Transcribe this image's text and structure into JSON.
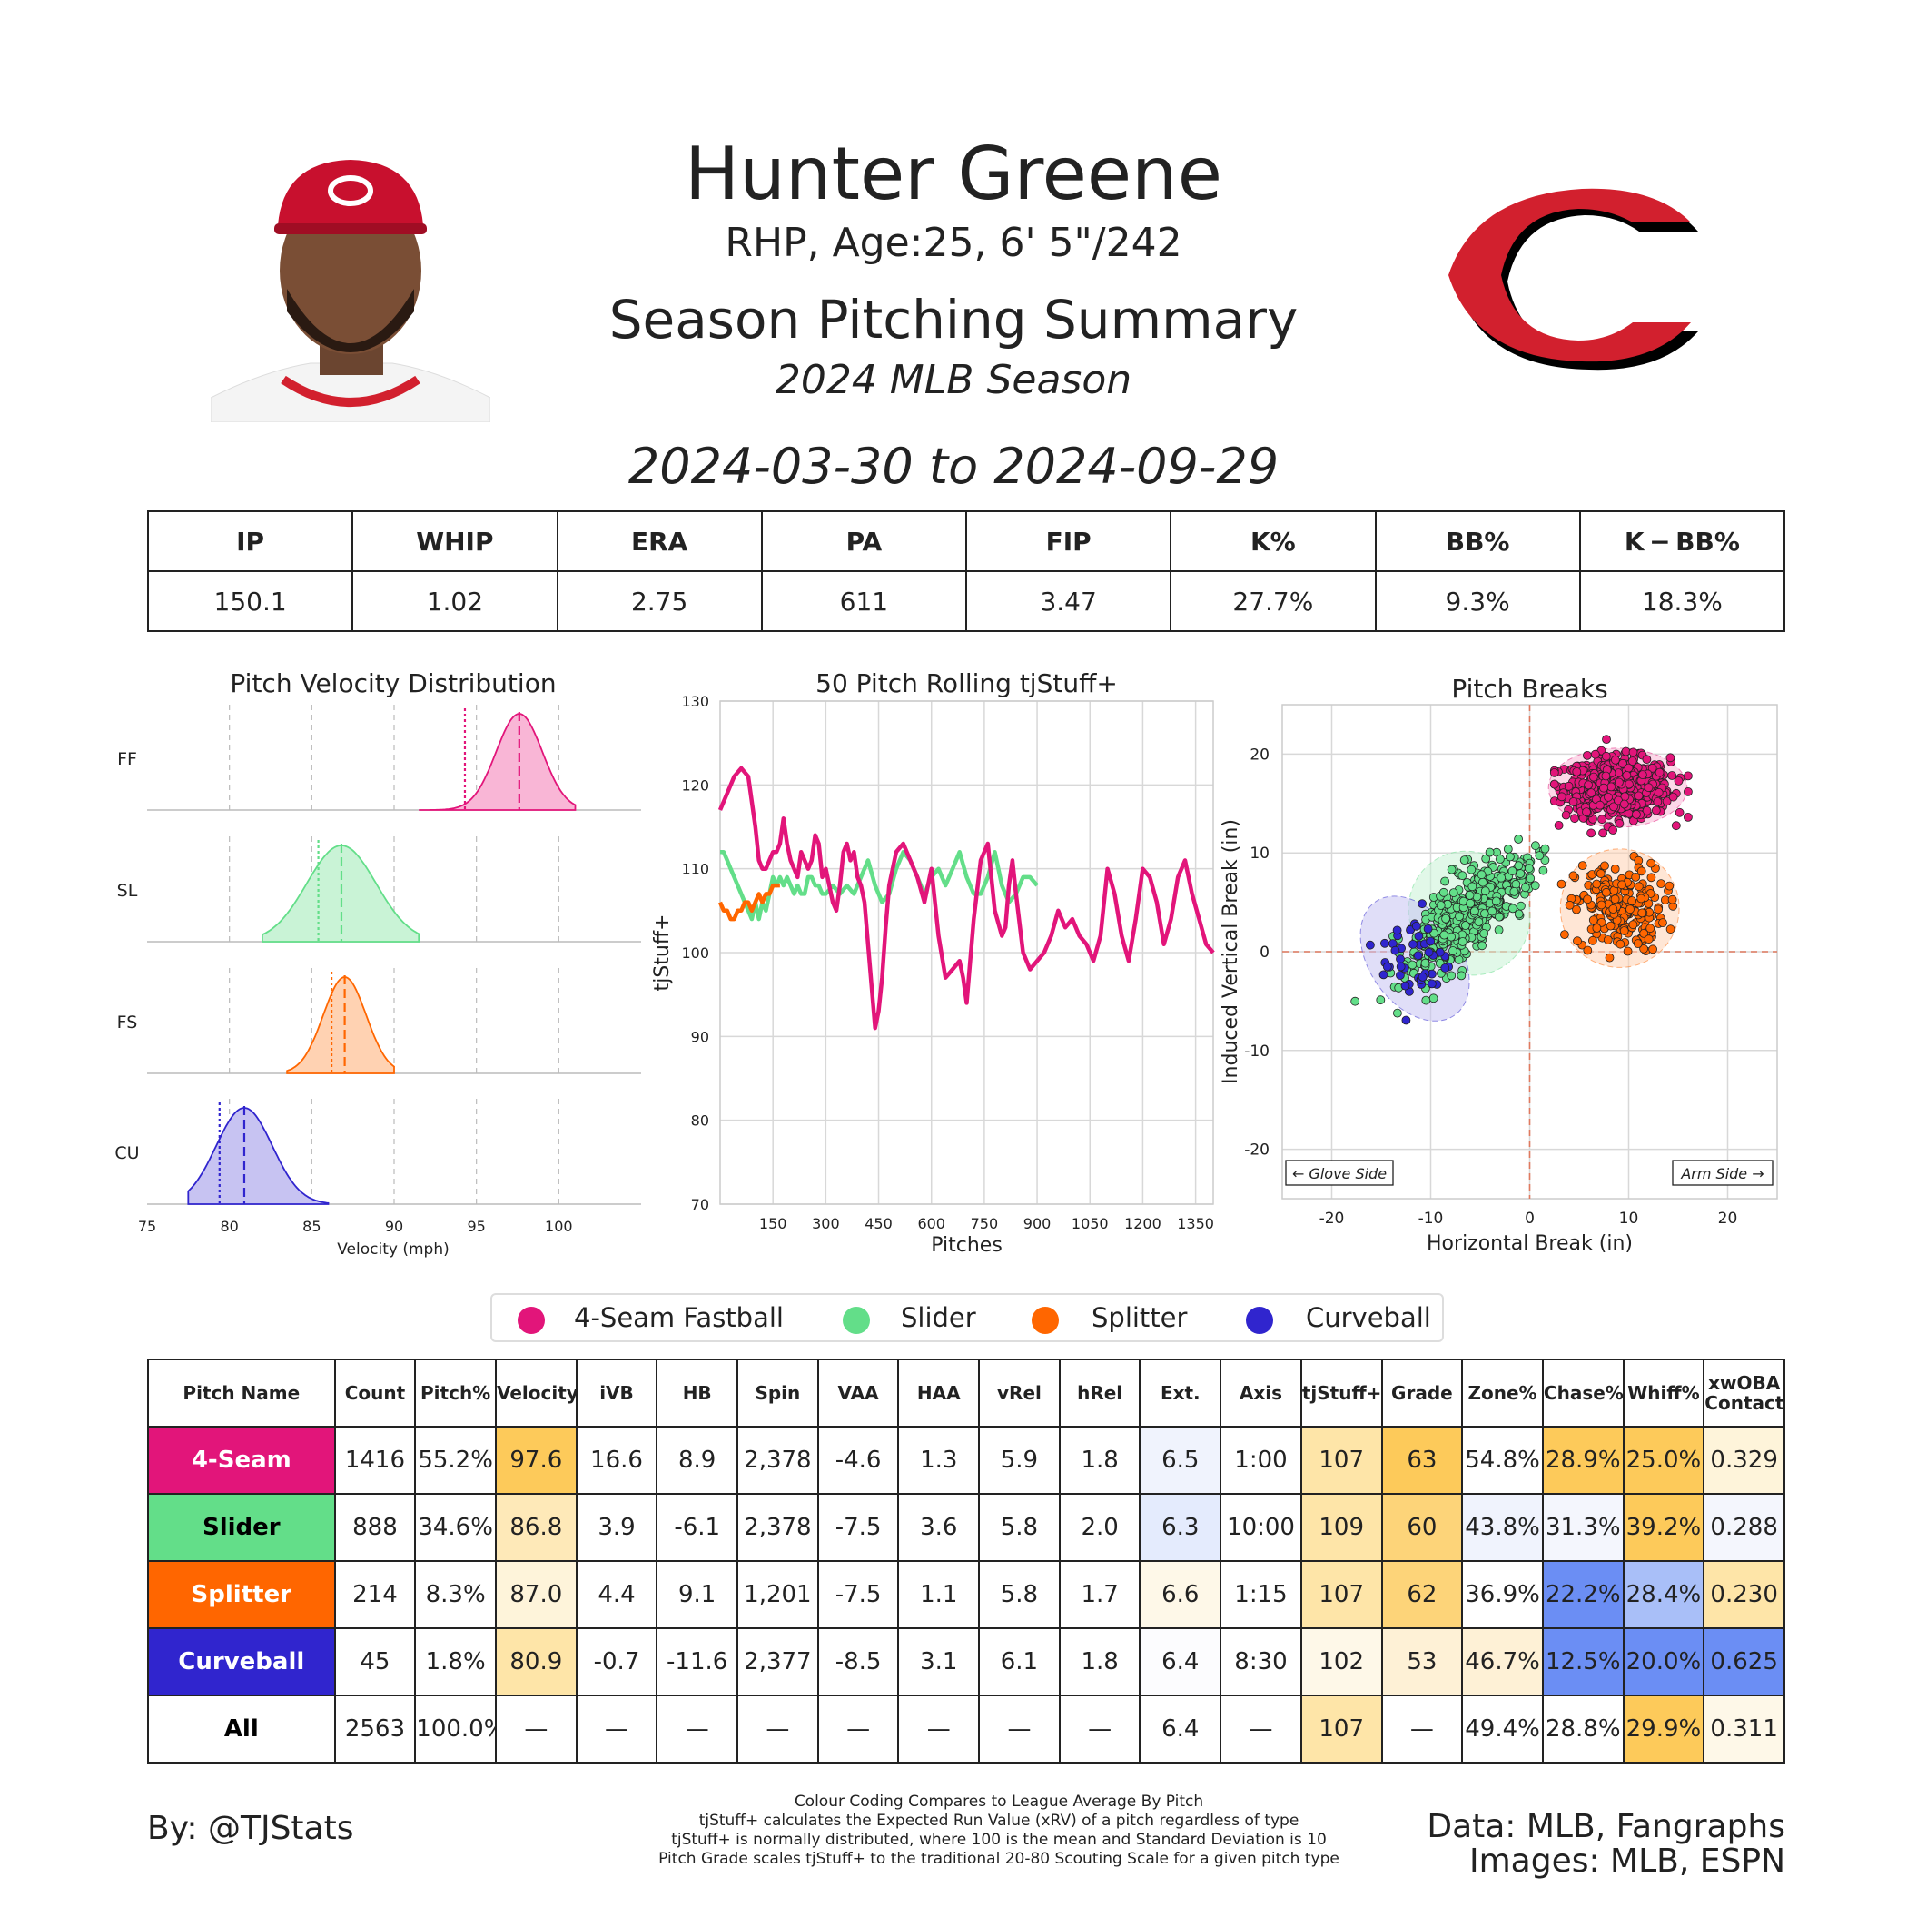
{
  "header": {
    "player_name": "Hunter Greene",
    "player_info": "RHP, Age:25, 6' 5\"/242",
    "report_title": "Season Pitching Summary",
    "season_label": "2024 MLB Season",
    "date_range": "2024-03-30 to 2024-09-29"
  },
  "summary_stats": {
    "headers": [
      "IP",
      "WHIP",
      "ERA",
      "PA",
      "FIP",
      "K%",
      "BB%",
      "K − BB%"
    ],
    "values": [
      "150.1",
      "1.02",
      "2.75",
      "611",
      "3.47",
      "27.7%",
      "9.3%",
      "18.3%"
    ]
  },
  "colors": {
    "ff": "#E2157A",
    "sl": "#63DE89",
    "fs": "#FF6600",
    "cu": "#3025CE",
    "grid": "#cccccc"
  },
  "chart_data": [
    {
      "type": "area",
      "title": "Pitch Velocity Distribution",
      "xlabel": "Velocity (mph)",
      "xlim": [
        75,
        105
      ],
      "xticks": [
        75,
        80,
        85,
        90,
        95,
        100
      ],
      "series": [
        {
          "name": "FF",
          "mean": 97.6,
          "league_avg": 94.3,
          "sd": 1.4,
          "range": [
            91.5,
            101
          ]
        },
        {
          "name": "SL",
          "mean": 86.8,
          "league_avg": 85.4,
          "sd": 2.1,
          "range": [
            82,
            91.5
          ]
        },
        {
          "name": "FS",
          "mean": 87.0,
          "league_avg": 86.2,
          "sd": 1.3,
          "range": [
            83.5,
            90
          ]
        },
        {
          "name": "CU",
          "mean": 80.9,
          "league_avg": 79.4,
          "sd": 1.7,
          "range": [
            77.5,
            86
          ]
        }
      ]
    },
    {
      "type": "line",
      "title": "50 Pitch Rolling tjStuff+",
      "xlabel": "Pitches",
      "ylabel": "tjStuff+",
      "xlim": [
        0,
        1400
      ],
      "ylim": [
        70,
        130
      ],
      "xticks": [
        150,
        300,
        450,
        600,
        750,
        900,
        1050,
        1200,
        1350
      ],
      "yticks": [
        70,
        80,
        90,
        100,
        110,
        120,
        130
      ],
      "series": [
        {
          "name": "4-Seam Fastball",
          "x": [
            0,
            20,
            40,
            60,
            80,
            90,
            100,
            110,
            120,
            130,
            140,
            150,
            160,
            170,
            180,
            190,
            200,
            210,
            220,
            230,
            240,
            250,
            260,
            270,
            280,
            290,
            300,
            310,
            320,
            330,
            340,
            350,
            360,
            370,
            380,
            390,
            400,
            410,
            420,
            430,
            440,
            450,
            460,
            470,
            480,
            500,
            520,
            540,
            560,
            580,
            600,
            620,
            640,
            660,
            680,
            690,
            700,
            720,
            740,
            760,
            780,
            800,
            810,
            820,
            830,
            840,
            860,
            880,
            900,
            920,
            940,
            960,
            980,
            1000,
            1020,
            1040,
            1060,
            1080,
            1100,
            1120,
            1140,
            1160,
            1180,
            1200,
            1220,
            1240,
            1260,
            1280,
            1300,
            1320,
            1340,
            1360,
            1380,
            1400
          ],
          "y": [
            117,
            119,
            121,
            122,
            121,
            118,
            115,
            111,
            110,
            110,
            111,
            112,
            112,
            113,
            116,
            113,
            111,
            110,
            109,
            112,
            111,
            110,
            111,
            114,
            113,
            109,
            110,
            108,
            106,
            105,
            108,
            112,
            113,
            111,
            112,
            109,
            108,
            106,
            101,
            96,
            91,
            93,
            97,
            103,
            108,
            112,
            113,
            111,
            109,
            106,
            110,
            102,
            97,
            98,
            99,
            97,
            94,
            104,
            111,
            113,
            105,
            102,
            103,
            108,
            111,
            107,
            100,
            98,
            99,
            100,
            102,
            105,
            103,
            104,
            102,
            101,
            99,
            102,
            110,
            107,
            102,
            99,
            104,
            110,
            109,
            106,
            101,
            104,
            109,
            111,
            107,
            104,
            101,
            100
          ]
        },
        {
          "name": "Slider",
          "x": [
            0,
            10,
            20,
            30,
            40,
            50,
            60,
            70,
            80,
            90,
            100,
            110,
            120,
            130,
            140,
            150,
            160,
            170,
            180,
            190,
            200,
            210,
            220,
            230,
            240,
            250,
            260,
            270,
            280,
            290,
            300,
            320,
            340,
            360,
            380,
            400,
            420,
            440,
            460,
            480,
            500,
            520,
            540,
            560,
            580,
            600,
            620,
            640,
            660,
            680,
            700,
            720,
            740,
            760,
            780,
            800,
            820,
            840,
            860,
            880,
            900
          ],
          "y": [
            112,
            112,
            111,
            110,
            109,
            108,
            107,
            106,
            105,
            104,
            106,
            104,
            106,
            105,
            107,
            109,
            108,
            109,
            108,
            109,
            108,
            107,
            108,
            107,
            107,
            109,
            109,
            108,
            108,
            107,
            107,
            108,
            107,
            108,
            107,
            109,
            111,
            108,
            106,
            107,
            110,
            112,
            111,
            109,
            107,
            109,
            110,
            108,
            110,
            112,
            109,
            107,
            107,
            109,
            112,
            108,
            106,
            107,
            109,
            109,
            108
          ]
        },
        {
          "name": "Splitter",
          "x": [
            0,
            10,
            20,
            30,
            40,
            50,
            60,
            70,
            80,
            90,
            100,
            110,
            120,
            130,
            140,
            150,
            160,
            170
          ],
          "y": [
            106,
            105,
            105,
            104,
            104,
            105,
            105,
            106,
            106,
            105,
            106,
            107,
            106,
            107,
            107,
            108,
            108,
            108
          ]
        },
        {
          "name": "Curveball",
          "x": [],
          "y": []
        }
      ]
    },
    {
      "type": "scatter",
      "title": "Pitch Breaks",
      "xlabel": "Horizontal Break (in)",
      "ylabel": "Induced Vertical Break (in)",
      "xlim": [
        -25,
        25
      ],
      "ylim": [
        -25,
        25
      ],
      "xticks": [
        -20,
        -10,
        0,
        10,
        20
      ],
      "yticks": [
        -20,
        -10,
        0,
        10,
        20
      ],
      "annotations": [
        "← Glove Side",
        "Arm Side →"
      ],
      "series": [
        {
          "name": "4-Seam Fastball",
          "center": [
            8.9,
            16.6
          ],
          "spread": [
            3.5,
            2.0
          ],
          "count": 1416
        },
        {
          "name": "Slider",
          "center": [
            -6.1,
            3.9
          ],
          "spread": [
            3.0,
            3.2
          ],
          "count": 888
        },
        {
          "name": "Splitter",
          "center": [
            9.1,
            4.4
          ],
          "spread": [
            3.0,
            3.0
          ],
          "count": 214
        },
        {
          "name": "Curveball",
          "center": [
            -11.6,
            -0.7
          ],
          "spread": [
            2.3,
            3.5
          ],
          "count": 45
        }
      ]
    }
  ],
  "legend": [
    {
      "label": "4-Seam Fastball",
      "color": "#E2157A"
    },
    {
      "label": "Slider",
      "color": "#63DE89"
    },
    {
      "label": "Splitter",
      "color": "#FF6600"
    },
    {
      "label": "Curveball",
      "color": "#3025CE"
    }
  ],
  "pitch_table": {
    "headers": [
      "Pitch Name",
      "Count",
      "Pitch%",
      "Velocity",
      "iVB",
      "HB",
      "Spin",
      "VAA",
      "HAA",
      "vRel",
      "hRel",
      "Ext.",
      "Axis",
      "tjStuff+",
      "Grade",
      "Zone%",
      "Chase%",
      "Whiff%",
      "xwOBA Contact"
    ],
    "rows": [
      {
        "name": "4-Seam",
        "name_bg": "#E2157A",
        "name_color": "#ffffff",
        "cells": [
          "1416",
          "55.2%",
          "97.6",
          "16.6",
          "8.9",
          "2,378",
          "-4.6",
          "1.3",
          "5.9",
          "1.8",
          "6.5",
          "1:00",
          "107",
          "63",
          "54.8%",
          "28.9%",
          "25.0%",
          "0.329"
        ],
        "bgs": [
          "",
          "",
          "#FDCA5A",
          "",
          "",
          "",
          "",
          "",
          "",
          "",
          "#F0F3FD",
          "",
          "#FEE5A8",
          "#FDCA5A",
          "",
          "#FDCA5A",
          "#FDCA5A",
          "#FEF4DA"
        ]
      },
      {
        "name": "Slider",
        "name_bg": "#63DE89",
        "name_color": "#000000",
        "cells": [
          "888",
          "34.6%",
          "86.8",
          "3.9",
          "-6.1",
          "2,378",
          "-7.5",
          "3.6",
          "5.8",
          "2.0",
          "6.3",
          "10:00",
          "109",
          "60",
          "43.8%",
          "31.3%",
          "39.2%",
          "0.288"
        ],
        "bgs": [
          "",
          "",
          "#FEE9B8",
          "",
          "",
          "",
          "",
          "",
          "",
          "",
          "#E4EBFD",
          "",
          "#FEE5A8",
          "#FDD479",
          "#F0F3FD",
          "#F4F6FD",
          "#FDCA5A",
          "#F4F6FD"
        ]
      },
      {
        "name": "Splitter",
        "name_bg": "#FF6600",
        "name_color": "#ffffff",
        "cells": [
          "214",
          "8.3%",
          "87.0",
          "4.4",
          "9.1",
          "1,201",
          "-7.5",
          "1.1",
          "5.8",
          "1.7",
          "6.6",
          "1:15",
          "107",
          "62",
          "36.9%",
          "22.2%",
          "28.4%",
          "0.230"
        ],
        "bgs": [
          "",
          "",
          "#FEF4DA",
          "",
          "",
          "",
          "",
          "",
          "",
          "",
          "#FEF8E8",
          "",
          "#FEE5A8",
          "#FDD479",
          "",
          "#6B8EF4",
          "#A9BFF8",
          "#FEE5A8"
        ]
      },
      {
        "name": "Curveball",
        "name_bg": "#3025CE",
        "name_color": "#ffffff",
        "cells": [
          "45",
          "1.8%",
          "80.9",
          "-0.7",
          "-11.6",
          "2,377",
          "-8.5",
          "3.1",
          "6.1",
          "1.8",
          "6.4",
          "8:30",
          "102",
          "53",
          "46.7%",
          "12.5%",
          "20.0%",
          "0.625"
        ],
        "bgs": [
          "",
          "",
          "#FEE5A8",
          "",
          "",
          "",
          "",
          "",
          "",
          "",
          "#FCFCFE",
          "",
          "#FEF8E8",
          "#FEF1D6",
          "#FEF1D6",
          "#6B8EF4",
          "#6B8EF4",
          "#6B8EF4"
        ]
      },
      {
        "name": "All",
        "name_bg": "#ffffff",
        "name_color": "#000000",
        "cells": [
          "2563",
          "100.0%",
          "—",
          "—",
          "—",
          "—",
          "—",
          "—",
          "—",
          "—",
          "6.4",
          "—",
          "107",
          "—",
          "49.4%",
          "28.8%",
          "29.9%",
          "0.311"
        ],
        "bgs": [
          "",
          "",
          "",
          "",
          "",
          "",
          "",
          "",
          "",
          "",
          "",
          "",
          "#FEE5A8",
          "",
          "",
          "",
          "#FDCA5A",
          "#FEF8E8"
        ]
      }
    ]
  },
  "footer": {
    "byline": "By: @TJStats",
    "notes": [
      "Colour Coding Compares to League Average By Pitch",
      "tjStuff+ calculates the Expected Run Value (xRV) of a pitch regardless of type",
      "tjStuff+ is normally distributed, where 100 is the mean and Standard Deviation is 10",
      "Pitch Grade scales tjStuff+ to the traditional 20-80 Scouting Scale for a given pitch type"
    ],
    "credits_data": "Data: MLB, Fangraphs",
    "credits_images": "Images: MLB, ESPN"
  }
}
